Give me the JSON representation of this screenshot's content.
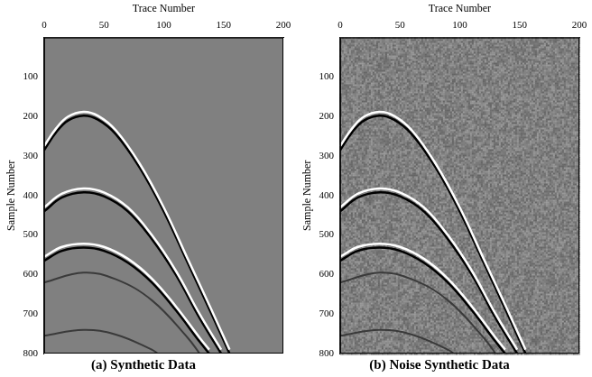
{
  "chart_data": [
    {
      "type": "line",
      "title": "(a) Synthetic Data",
      "x_label": "Trace Number",
      "y_label": "Sample Number",
      "xlim": [
        0,
        200
      ],
      "xticks": [
        0,
        50,
        100,
        150,
        200
      ],
      "ylim": [
        800,
        0
      ],
      "yticks": [
        100,
        200,
        300,
        400,
        500,
        600,
        700,
        800
      ],
      "grid": false,
      "series": [
        {
          "color": "#ffffff",
          "x": [
            0,
            10,
            20,
            33,
            45,
            60,
            80,
            100,
            120,
            140,
            155
          ],
          "values": [
            275,
            230,
            200,
            188,
            198,
            235,
            320,
            430,
            560,
            690,
            790
          ]
        },
        {
          "color": "#000000",
          "x": [
            0,
            10,
            20,
            33,
            45,
            60,
            80,
            100,
            120,
            140,
            155
          ],
          "values": [
            285,
            240,
            210,
            198,
            208,
            245,
            330,
            440,
            570,
            700,
            800
          ]
        },
        {
          "color": "#ffffff",
          "x": [
            0,
            15,
            33,
            50,
            70,
            90,
            110,
            130,
            148
          ],
          "values": [
            430,
            395,
            382,
            392,
            430,
            500,
            590,
            700,
            790
          ]
        },
        {
          "color": "#000000",
          "x": [
            0,
            15,
            33,
            50,
            70,
            90,
            110,
            130,
            148
          ],
          "values": [
            440,
            405,
            392,
            402,
            440,
            510,
            600,
            710,
            800
          ]
        },
        {
          "color": "#ffffff",
          "x": [
            0,
            15,
            33,
            50,
            70,
            90,
            110,
            130,
            138
          ],
          "values": [
            555,
            530,
            522,
            530,
            560,
            610,
            680,
            760,
            790
          ]
        },
        {
          "color": "#000000",
          "x": [
            0,
            15,
            33,
            50,
            70,
            90,
            110,
            130,
            138
          ],
          "values": [
            565,
            540,
            532,
            540,
            570,
            620,
            690,
            770,
            800
          ]
        },
        {
          "color": "#3a3a3a",
          "x": [
            0,
            33,
            60,
            90,
            120,
            130
          ],
          "values": [
            620,
            595,
            612,
            665,
            760,
            800
          ]
        },
        {
          "color": "#3a3a3a",
          "x": [
            0,
            33,
            60,
            90,
            95
          ],
          "values": [
            755,
            740,
            752,
            790,
            800
          ]
        }
      ]
    },
    {
      "type": "line",
      "title": "(b) Noise Synthetic Data",
      "x_label": "Trace Number",
      "y_label": "Sample Number",
      "xlim": [
        0,
        200
      ],
      "xticks": [
        0,
        50,
        100,
        150,
        200
      ],
      "ylim": [
        800,
        0
      ],
      "yticks": [
        100,
        200,
        300,
        400,
        500,
        600,
        700,
        800
      ],
      "grid": false,
      "series": [
        {
          "color": "#ffffff",
          "x": [
            0,
            10,
            20,
            33,
            45,
            60,
            80,
            100,
            120,
            140,
            155
          ],
          "values": [
            275,
            230,
            200,
            188,
            198,
            235,
            320,
            430,
            560,
            690,
            790
          ]
        },
        {
          "color": "#000000",
          "x": [
            0,
            10,
            20,
            33,
            45,
            60,
            80,
            100,
            120,
            140,
            155
          ],
          "values": [
            285,
            240,
            210,
            198,
            208,
            245,
            330,
            440,
            570,
            700,
            800
          ]
        },
        {
          "color": "#ffffff",
          "x": [
            0,
            15,
            33,
            50,
            70,
            90,
            110,
            130,
            148
          ],
          "values": [
            430,
            395,
            382,
            392,
            430,
            500,
            590,
            700,
            790
          ]
        },
        {
          "color": "#000000",
          "x": [
            0,
            15,
            33,
            50,
            70,
            90,
            110,
            130,
            148
          ],
          "values": [
            440,
            405,
            392,
            402,
            440,
            510,
            600,
            710,
            800
          ]
        },
        {
          "color": "#ffffff",
          "x": [
            0,
            15,
            33,
            50,
            70,
            90,
            110,
            130,
            138
          ],
          "values": [
            555,
            530,
            522,
            530,
            560,
            610,
            680,
            760,
            790
          ]
        },
        {
          "color": "#000000",
          "x": [
            0,
            15,
            33,
            50,
            70,
            90,
            110,
            130,
            138
          ],
          "values": [
            565,
            540,
            532,
            540,
            570,
            620,
            690,
            770,
            800
          ]
        },
        {
          "color": "#3a3a3a",
          "x": [
            0,
            33,
            60,
            90,
            120,
            130
          ],
          "values": [
            620,
            595,
            612,
            665,
            760,
            800
          ]
        },
        {
          "color": "#3a3a3a",
          "x": [
            0,
            33,
            60,
            90,
            95
          ],
          "values": [
            755,
            740,
            752,
            790,
            800
          ]
        }
      ]
    }
  ]
}
